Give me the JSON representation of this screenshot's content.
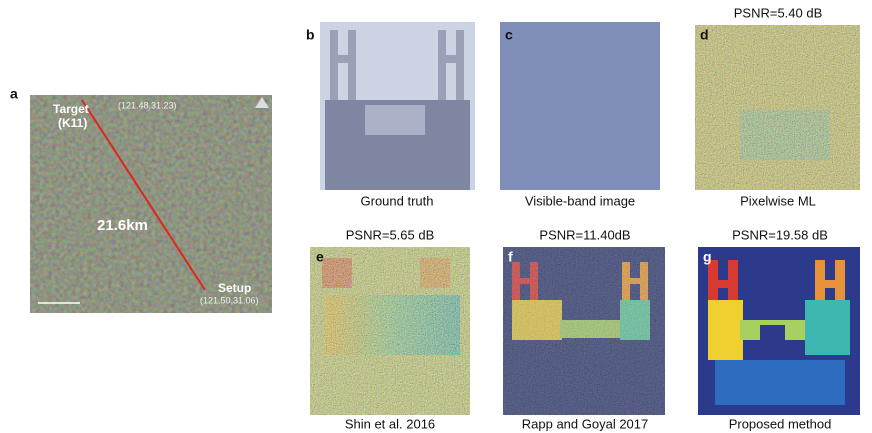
{
  "figure": {
    "panel_a": {
      "label": "a",
      "target_label": "Target",
      "target_name": "(K11)",
      "target_coords": "(121.48,31.23)",
      "distance": "21.6km",
      "setup_label": "Setup",
      "setup_coords": "(121.50,31.06)"
    },
    "panels": [
      {
        "label": "b",
        "caption": "Ground truth"
      },
      {
        "label": "c",
        "caption": "Visible-band image"
      },
      {
        "label": "d",
        "title": "PSNR=5.40 dB",
        "caption": "Pixelwise ML"
      },
      {
        "label": "e",
        "title": "PSNR=5.65 dB",
        "caption": "Shin et al. 2016"
      },
      {
        "label": "f",
        "title": "PSNR=11.40dB",
        "caption": "Rapp and Goyal 2017"
      },
      {
        "label": "g",
        "title": "PSNR=19.58 dB",
        "caption": "Proposed method"
      }
    ]
  }
}
